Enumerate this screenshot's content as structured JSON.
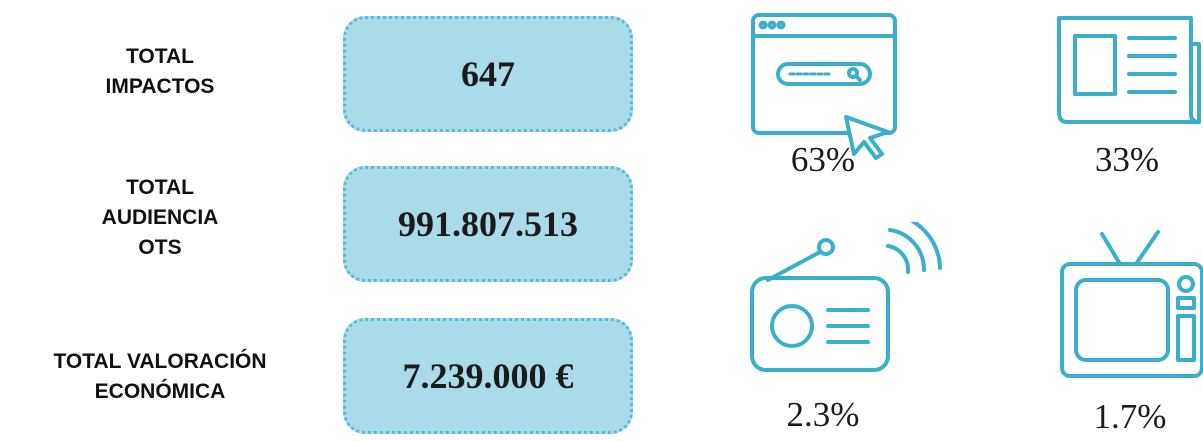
{
  "metrics": [
    {
      "label": [
        "TOTAL",
        "IMPACTOS"
      ],
      "value": "647"
    },
    {
      "label": [
        "TOTAL",
        "AUDIENCIA",
        "OTS"
      ],
      "value": "991.807.513"
    },
    {
      "label": [
        "TOTAL VALORACIÓN",
        "ECONÓMICA"
      ],
      "value": "7.239.000 €"
    }
  ],
  "media": [
    {
      "icon": "web",
      "share": "63%"
    },
    {
      "icon": "press",
      "share": "33%"
    },
    {
      "icon": "radio",
      "share": "2.3%"
    },
    {
      "icon": "tv",
      "share": "1.7%"
    }
  ]
}
